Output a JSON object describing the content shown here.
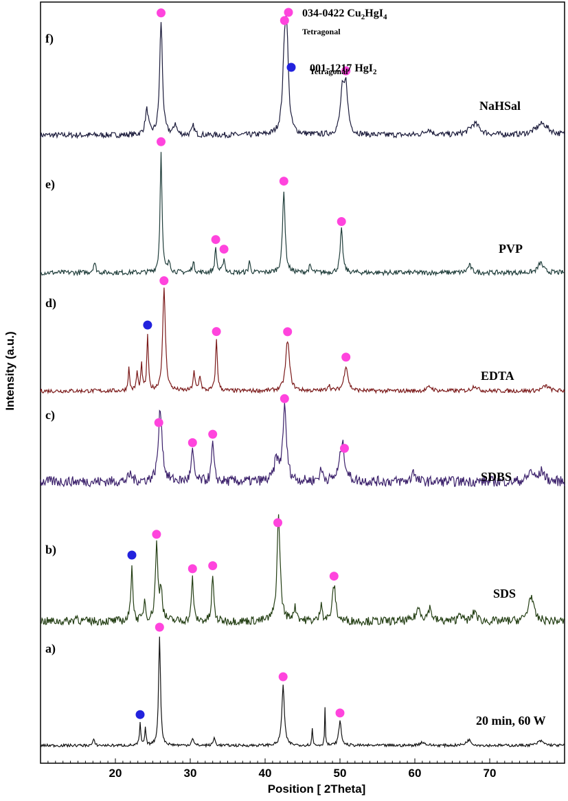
{
  "chart_data": {
    "type": "line",
    "title": "",
    "xlabel": "Position [ 2Theta]",
    "ylabel": "Intensity (a.u.)",
    "xlim": [
      10,
      80
    ],
    "xticks": [
      20,
      30,
      40,
      50,
      60,
      70
    ],
    "legend": [
      {
        "code": "034-0422 ",
        "formula": [
          "Cu",
          "2",
          "HgI",
          "4"
        ],
        "phase": "Tetragonal",
        "color": "#ff44dd",
        "name": "cu2hgi4"
      },
      {
        "code": "001-1217 ",
        "formula": [
          "HgI",
          "2",
          "",
          ""
        ],
        "phase": "Tetragonal",
        "color": "#2222dd",
        "name": "hgi2"
      }
    ],
    "series": [
      {
        "panel": "f)",
        "name": "NaHSal",
        "color": "#1a1a3a",
        "noise": 0.05,
        "baseline": 0.05,
        "peaks": [
          [
            24.2,
            0.22,
            0.25
          ],
          [
            26.1,
            1.0,
            0.22
          ],
          [
            28.0,
            0.1,
            0.2
          ],
          [
            30.4,
            0.08,
            0.2
          ],
          [
            42.6,
            0.65,
            0.3
          ],
          [
            42.9,
            0.7,
            0.25
          ],
          [
            50.3,
            0.35,
            0.3
          ],
          [
            50.8,
            0.4,
            0.3
          ],
          [
            61.8,
            0.05,
            0.5
          ],
          [
            68.0,
            0.1,
            0.8
          ],
          [
            77.0,
            0.1,
            1.0
          ]
        ],
        "markers": [
          {
            "x": 26.1,
            "phase": "cu2hgi4"
          },
          {
            "x": 42.6,
            "phase": "cu2hgi4"
          },
          {
            "x": 50.8,
            "phase": "cu2hgi4"
          }
        ]
      },
      {
        "panel": "e)",
        "name": "PVP",
        "color": "#1f3d3a",
        "noise": 0.04,
        "baseline": 0.04,
        "peaks": [
          [
            17.2,
            0.08,
            0.2
          ],
          [
            26.1,
            1.0,
            0.15
          ],
          [
            27.2,
            0.08,
            0.2
          ],
          [
            30.4,
            0.08,
            0.2
          ],
          [
            33.4,
            0.2,
            0.15
          ],
          [
            34.5,
            0.12,
            0.15
          ],
          [
            37.9,
            0.1,
            0.12
          ],
          [
            42.5,
            0.68,
            0.2
          ],
          [
            46.0,
            0.05,
            0.2
          ],
          [
            50.2,
            0.35,
            0.2
          ],
          [
            67.3,
            0.06,
            0.3
          ],
          [
            76.8,
            0.08,
            0.4
          ]
        ],
        "markers": [
          {
            "x": 26.1,
            "phase": "cu2hgi4"
          },
          {
            "x": 33.4,
            "phase": "cu2hgi4"
          },
          {
            "x": 34.5,
            "phase": "cu2hgi4"
          },
          {
            "x": 42.5,
            "phase": "cu2hgi4"
          },
          {
            "x": 50.2,
            "phase": "cu2hgi4"
          }
        ]
      },
      {
        "panel": "d)",
        "name": "EDTA",
        "color": "#7a1818",
        "noise": 0.04,
        "baseline": 0.04,
        "peaks": [
          [
            21.8,
            0.22,
            0.12
          ],
          [
            22.9,
            0.18,
            0.12
          ],
          [
            23.5,
            0.25,
            0.12
          ],
          [
            24.3,
            0.55,
            0.12
          ],
          [
            26.5,
            1.0,
            0.22
          ],
          [
            30.5,
            0.18,
            0.15
          ],
          [
            31.3,
            0.15,
            0.15
          ],
          [
            33.5,
            0.5,
            0.15
          ],
          [
            43.0,
            0.5,
            0.3
          ],
          [
            48.5,
            0.06,
            0.2
          ],
          [
            50.8,
            0.25,
            0.3
          ],
          [
            62.0,
            0.04,
            0.4
          ],
          [
            68.0,
            0.05,
            0.4
          ],
          [
            77.5,
            0.05,
            0.5
          ]
        ],
        "markers": [
          {
            "x": 24.3,
            "phase": "hgi2"
          },
          {
            "x": 26.5,
            "phase": "cu2hgi4"
          },
          {
            "x": 33.5,
            "phase": "cu2hgi4"
          },
          {
            "x": 43.0,
            "phase": "cu2hgi4"
          },
          {
            "x": 50.8,
            "phase": "cu2hgi4"
          }
        ]
      },
      {
        "panel": "c)",
        "name": "SDBS",
        "color": "#3a1f6a",
        "noise": 0.12,
        "baseline": 0.12,
        "peaks": [
          [
            22.0,
            0.08,
            0.3
          ],
          [
            26.0,
            0.85,
            0.3
          ],
          [
            30.3,
            0.35,
            0.2
          ],
          [
            33.0,
            0.45,
            0.18
          ],
          [
            41.5,
            0.25,
            0.3
          ],
          [
            42.6,
            0.85,
            0.3
          ],
          [
            47.5,
            0.12,
            0.3
          ],
          [
            50.3,
            0.45,
            0.4
          ],
          [
            59.8,
            0.15,
            0.2
          ],
          [
            75.5,
            0.12,
            0.4
          ],
          [
            77.0,
            0.12,
            0.4
          ]
        ],
        "markers": [
          {
            "x": 25.8,
            "phase": "cu2hgi4"
          },
          {
            "x": 30.3,
            "phase": "cu2hgi4"
          },
          {
            "x": 33.0,
            "phase": "cu2hgi4"
          },
          {
            "x": 42.6,
            "phase": "cu2hgi4"
          },
          {
            "x": 50.6,
            "phase": "cu2hgi4"
          }
        ]
      },
      {
        "panel": "b)",
        "name": "SDS",
        "color": "#223d12",
        "noise": 0.08,
        "baseline": 0.05,
        "peaks": [
          [
            14.8,
            0.05,
            0.2
          ],
          [
            22.2,
            0.55,
            0.15
          ],
          [
            23.9,
            0.2,
            0.15
          ],
          [
            25.5,
            0.72,
            0.2
          ],
          [
            26.1,
            0.3,
            0.2
          ],
          [
            30.3,
            0.42,
            0.15
          ],
          [
            33.0,
            0.45,
            0.15
          ],
          [
            41.8,
            1.0,
            0.25
          ],
          [
            44.0,
            0.12,
            0.3
          ],
          [
            47.5,
            0.2,
            0.15
          ],
          [
            49.2,
            0.35,
            0.25
          ],
          [
            60.5,
            0.12,
            0.4
          ],
          [
            62.0,
            0.12,
            0.3
          ],
          [
            66.0,
            0.1,
            0.2
          ],
          [
            68.0,
            0.1,
            0.3
          ],
          [
            75.5,
            0.25,
            0.4
          ]
        ],
        "markers": [
          {
            "x": 22.2,
            "phase": "hgi2"
          },
          {
            "x": 25.5,
            "phase": "cu2hgi4"
          },
          {
            "x": 30.3,
            "phase": "cu2hgi4"
          },
          {
            "x": 33.0,
            "phase": "cu2hgi4"
          },
          {
            "x": 41.7,
            "phase": "cu2hgi4"
          },
          {
            "x": 49.2,
            "phase": "cu2hgi4"
          }
        ]
      },
      {
        "panel": "a)",
        "name": "20 min, 60 W",
        "color": "#111111",
        "noise": 0.025,
        "baseline": 0.03,
        "peaks": [
          [
            17.1,
            0.05,
            0.15
          ],
          [
            23.3,
            0.2,
            0.1
          ],
          [
            24.0,
            0.15,
            0.1
          ],
          [
            25.9,
            1.0,
            0.15
          ],
          [
            30.3,
            0.07,
            0.15
          ],
          [
            33.2,
            0.07,
            0.15
          ],
          [
            42.4,
            0.55,
            0.2
          ],
          [
            46.3,
            0.15,
            0.08
          ],
          [
            48.0,
            0.35,
            0.06
          ],
          [
            50.0,
            0.22,
            0.2
          ],
          [
            61.0,
            0.03,
            0.4
          ],
          [
            67.2,
            0.05,
            0.4
          ],
          [
            76.8,
            0.04,
            0.5
          ]
        ],
        "markers": [
          {
            "x": 23.3,
            "phase": "hgi2"
          },
          {
            "x": 25.9,
            "phase": "cu2hgi4"
          },
          {
            "x": 42.4,
            "phase": "cu2hgi4"
          },
          {
            "x": 50.0,
            "phase": "cu2hgi4"
          }
        ]
      }
    ]
  }
}
